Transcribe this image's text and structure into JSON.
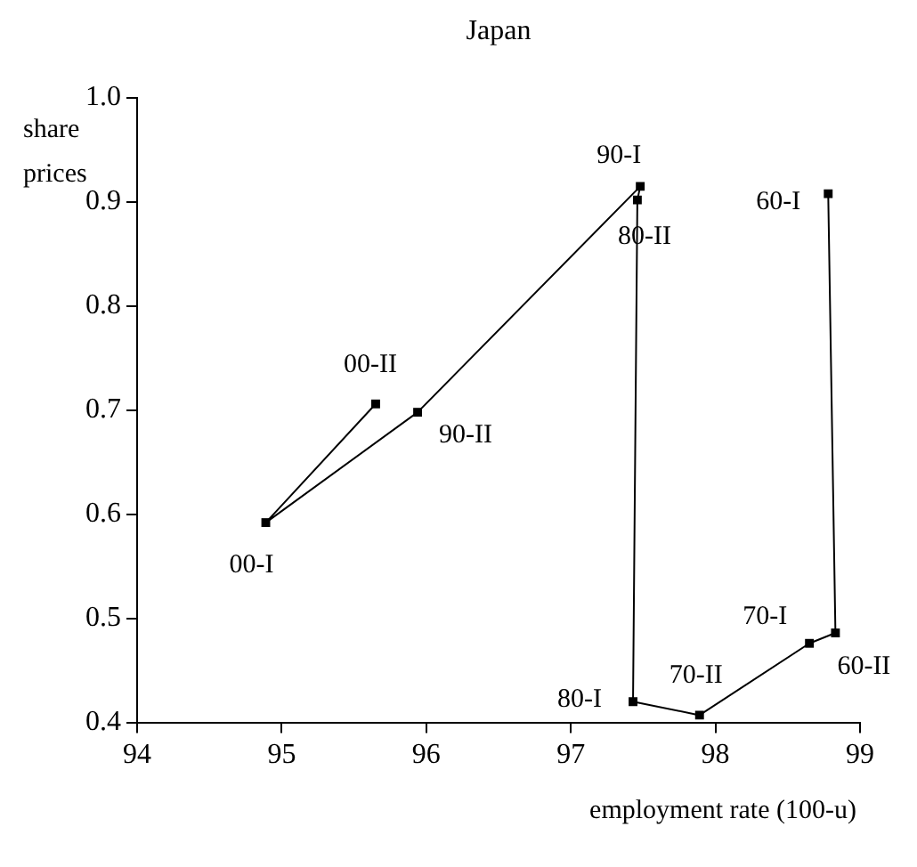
{
  "chart_data": {
    "type": "line",
    "title": "Japan",
    "xlabel": "employment rate (100-u)",
    "ylabel": "share prices",
    "series": [
      {
        "color": "#000000",
        "x": [
          98.78,
          98.83,
          98.65,
          97.89,
          97.43,
          97.46,
          97.48,
          95.94,
          94.89,
          95.65
        ],
        "values": [
          0.908,
          0.486,
          0.476,
          0.407,
          0.42,
          0.902,
          0.915,
          0.698,
          0.592,
          0.706
        ]
      }
    ],
    "xlim": [
      94,
      99
    ],
    "xticks": [
      94,
      95,
      96,
      97,
      98,
      99
    ],
    "ylim": [
      0.4,
      1.0
    ],
    "yticks": [
      {
        "value": 0.4,
        "label": "0.4"
      },
      {
        "value": 0.5,
        "label": "0.5"
      },
      {
        "value": 0.6,
        "label": "0.6"
      },
      {
        "value": 0.7,
        "label": "0.7"
      },
      {
        "value": 0.8,
        "label": "0.8"
      },
      {
        "value": 0.9,
        "label": "0.9"
      },
      {
        "value": 1.0,
        "label": "1.0"
      }
    ],
    "annotations": [
      {
        "text": "60-I",
        "x": 98.78,
        "y": 0.908
      },
      {
        "text": "60-II",
        "x": 98.83,
        "y": 0.486
      },
      {
        "text": "70-I",
        "x": 98.65,
        "y": 0.476
      },
      {
        "text": "70-II",
        "x": 97.89,
        "y": 0.407
      },
      {
        "text": "80-I",
        "x": 97.43,
        "y": 0.42
      },
      {
        "text": "80-II",
        "x": 97.46,
        "y": 0.902
      },
      {
        "text": "90-I",
        "x": 97.48,
        "y": 0.915
      },
      {
        "text": "90-II",
        "x": 95.94,
        "y": 0.698
      },
      {
        "text": "00-I",
        "x": 94.89,
        "y": 0.592
      },
      {
        "text": "00-II",
        "x": 95.65,
        "y": 0.706
      }
    ],
    "grid": false,
    "legend": false,
    "marker": "square",
    "line_style": "solid"
  }
}
